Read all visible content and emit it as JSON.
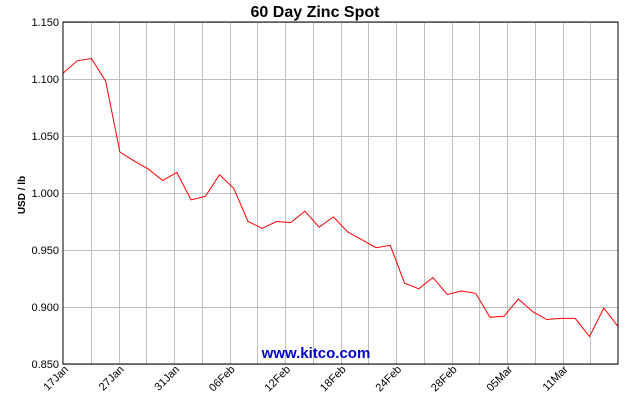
{
  "chart_data": {
    "type": "line",
    "title": "60 Day Zinc Spot",
    "ylabel": "USD / lb",
    "ylim": [
      0.85,
      1.15
    ],
    "yticks": [
      "0.850",
      "0.900",
      "0.950",
      "1.000",
      "1.050",
      "1.100",
      "1.150"
    ],
    "xticks": [
      "17Jan",
      "27Jan",
      "31Jan",
      "06Feb",
      "12Feb",
      "18Feb",
      "24Feb",
      "28Feb",
      "05Mar",
      "11Mar"
    ],
    "grid": true,
    "line_color": "#ff0000",
    "series": [
      {
        "values": [
          1.105,
          1.116,
          1.118,
          1.098,
          1.036,
          1.028,
          1.021,
          1.011,
          1.018,
          0.994,
          0.997,
          1.016,
          1.004,
          0.975,
          0.969,
          0.975,
          0.974,
          0.984,
          0.97,
          0.979,
          0.966,
          0.959,
          0.952,
          0.954,
          0.921,
          0.916,
          0.926,
          0.911,
          0.914,
          0.912,
          0.891,
          0.892,
          0.907,
          0.896,
          0.889,
          0.89,
          0.89,
          0.874,
          0.899,
          0.883
        ]
      }
    ]
  },
  "watermark": "www.kitco.com"
}
